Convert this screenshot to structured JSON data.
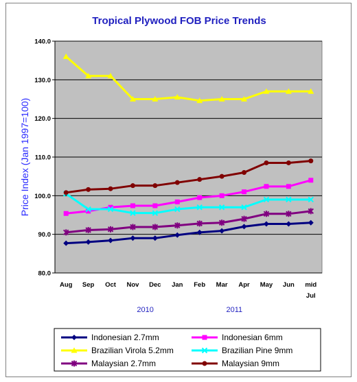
{
  "chart_data": {
    "type": "line",
    "title": "Tropical Plywood FOB Price Trends",
    "ylabel": "Price Index (Jan 1997=100)",
    "ylim": [
      80.0,
      140.0
    ],
    "yticks": [
      "80.0",
      "90.0",
      "100.0",
      "110.0",
      "120.0",
      "130.0",
      "140.0"
    ],
    "categories": [
      "Aug",
      "Sep",
      "Oct",
      "Nov",
      "Dec",
      "Jan",
      "Feb",
      "Mar",
      "Apr",
      "May",
      "Jun",
      "mid Jul"
    ],
    "category_lines": [
      [
        "Aug"
      ],
      [
        "Sep"
      ],
      [
        "Oct"
      ],
      [
        "Nov"
      ],
      [
        "Dec"
      ],
      [
        "Jan"
      ],
      [
        "Feb"
      ],
      [
        "Mar"
      ],
      [
        "Apr"
      ],
      [
        "May"
      ],
      [
        "Jun"
      ],
      [
        "mid",
        "Jul"
      ]
    ],
    "year_labels": [
      "2010",
      "2011"
    ],
    "grid": true,
    "legend_position": "bottom",
    "series": [
      {
        "name": "Indonesian 2.7mm",
        "color": "#000080",
        "marker": "diamond",
        "values": [
          87.7,
          88.0,
          88.4,
          89.0,
          89.0,
          89.8,
          90.5,
          90.9,
          92.0,
          92.7,
          92.7,
          93.0
        ]
      },
      {
        "name": "Indonesian 6mm",
        "color": "#ff00ff",
        "marker": "square",
        "values": [
          95.4,
          96.0,
          97.0,
          97.4,
          97.4,
          98.4,
          99.5,
          100.0,
          101.0,
          102.4,
          102.4,
          104.0
        ]
      },
      {
        "name": "Brazilian Virola 5.2mm",
        "color": "#ffff00",
        "marker": "triangle",
        "values": [
          136.0,
          131.0,
          131.0,
          125.0,
          125.0,
          125.5,
          124.6,
          125.0,
          125.0,
          127.0,
          127.0,
          127.0
        ]
      },
      {
        "name": "Brazilian Pine 9mm",
        "color": "#00ffff",
        "marker": "x",
        "values": [
          100.5,
          96.5,
          96.5,
          95.5,
          95.5,
          96.5,
          97.0,
          97.0,
          97.0,
          99.0,
          99.0,
          99.0
        ]
      },
      {
        "name": "Malaysian 2.7mm",
        "color": "#800080",
        "marker": "star",
        "values": [
          90.5,
          91.1,
          91.3,
          91.9,
          91.9,
          92.3,
          92.8,
          93.0,
          94.0,
          95.3,
          95.3,
          96.0
        ]
      },
      {
        "name": "Malaysian 9mm",
        "color": "#800000",
        "marker": "circle",
        "values": [
          100.8,
          101.6,
          101.8,
          102.6,
          102.6,
          103.4,
          104.2,
          105.0,
          106.0,
          108.5,
          108.5,
          109.0
        ]
      }
    ]
  }
}
